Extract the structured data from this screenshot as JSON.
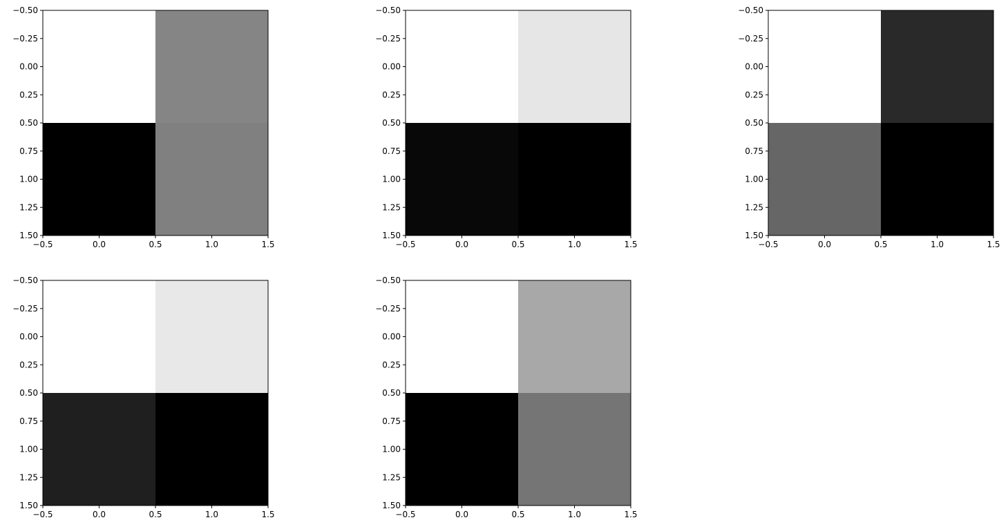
{
  "chart_data": [
    {
      "type": "heatmap",
      "colormap": "gray",
      "values": [
        [
          1.0,
          0.52
        ],
        [
          0.0,
          0.5
        ]
      ],
      "xlim": [
        -0.5,
        1.5
      ],
      "ylim": [
        1.5,
        -0.5
      ],
      "xticks": [
        "−0.5",
        "0.0",
        "0.5",
        "1.0",
        "1.5"
      ],
      "yticks": [
        "−0.50",
        "−0.25",
        "0.00",
        "0.25",
        "0.50",
        "0.75",
        "1.00",
        "1.25",
        "1.50"
      ]
    },
    {
      "type": "heatmap",
      "colormap": "gray",
      "values": [
        [
          1.0,
          0.9
        ],
        [
          0.03,
          0.0
        ]
      ],
      "xlim": [
        -0.5,
        1.5
      ],
      "ylim": [
        1.5,
        -0.5
      ],
      "xticks": [
        "−0.5",
        "0.0",
        "0.5",
        "1.0",
        "1.5"
      ],
      "yticks": [
        "−0.50",
        "−0.25",
        "0.00",
        "0.25",
        "0.50",
        "0.75",
        "1.00",
        "1.25",
        "1.50"
      ]
    },
    {
      "type": "heatmap",
      "colormap": "gray",
      "values": [
        [
          1.0,
          0.16
        ],
        [
          0.4,
          0.0
        ]
      ],
      "xlim": [
        -0.5,
        1.5
      ],
      "ylim": [
        1.5,
        -0.5
      ],
      "xticks": [
        "−0.5",
        "0.0",
        "0.5",
        "1.0",
        "1.5"
      ],
      "yticks": [
        "−0.50",
        "−0.25",
        "0.00",
        "0.25",
        "0.50",
        "0.75",
        "1.00",
        "1.25",
        "1.50"
      ]
    },
    {
      "type": "heatmap",
      "colormap": "gray",
      "values": [
        [
          1.0,
          0.91
        ],
        [
          0.12,
          0.0
        ]
      ],
      "xlim": [
        -0.5,
        1.5
      ],
      "ylim": [
        1.5,
        -0.5
      ],
      "xticks": [
        "−0.5",
        "0.0",
        "0.5",
        "1.0",
        "1.5"
      ],
      "yticks": [
        "−0.50",
        "−0.25",
        "0.00",
        "0.25",
        "0.50",
        "0.75",
        "1.00",
        "1.25",
        "1.50"
      ]
    },
    {
      "type": "heatmap",
      "colormap": "gray",
      "values": [
        [
          1.0,
          0.66
        ],
        [
          0.0,
          0.46
        ]
      ],
      "xlim": [
        -0.5,
        1.5
      ],
      "ylim": [
        1.5,
        -0.5
      ],
      "xticks": [
        "−0.5",
        "0.0",
        "0.5",
        "1.0",
        "1.5"
      ],
      "yticks": [
        "−0.50",
        "−0.25",
        "0.00",
        "0.25",
        "0.50",
        "0.75",
        "1.00",
        "1.25",
        "1.50"
      ]
    }
  ]
}
